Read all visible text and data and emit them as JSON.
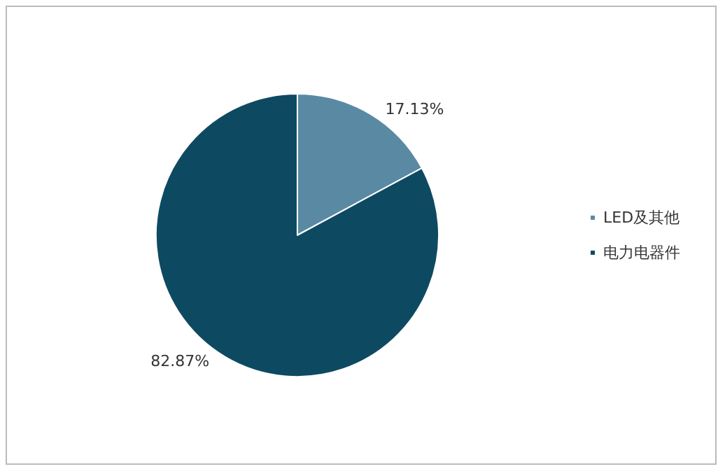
{
  "chart_data": {
    "type": "pie",
    "categories": [
      "LED及其他",
      "电力电器件"
    ],
    "values": [
      17.13,
      82.87
    ],
    "colors": [
      "#5a8aa3",
      "#0d4a62"
    ],
    "value_labels": [
      "17.13%",
      "82.87%"
    ],
    "legend": "right"
  }
}
